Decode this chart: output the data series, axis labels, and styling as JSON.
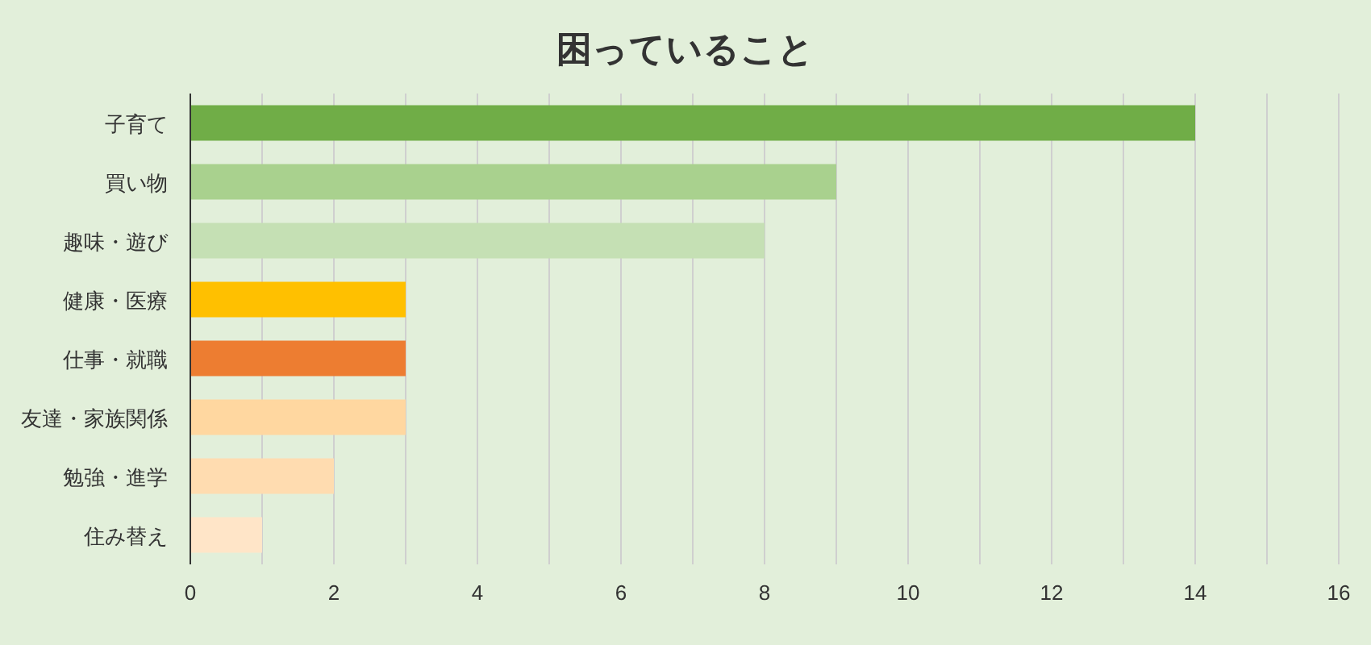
{
  "chart_data": {
    "type": "bar",
    "orientation": "horizontal",
    "title": "困っていること",
    "categories": [
      "子育て",
      "買い物",
      "趣味・遊び",
      "健康・医療",
      "仕事・就職",
      "友達・家族関係",
      "勉強・進学",
      "住み替え"
    ],
    "values": [
      14,
      9,
      8,
      3,
      3,
      3,
      2,
      1
    ],
    "colors": [
      "#70ad47",
      "#a9d18e",
      "#c5e0b4",
      "#ffc000",
      "#ed7d31",
      "#ffd7a0",
      "#ffdcb0",
      "#ffe5c8"
    ],
    "xlim": [
      0,
      16
    ],
    "xticks": [
      0,
      {
        "value": 1,
        "label": null
      },
      2,
      {
        "value": 3,
        "label": null
      },
      4,
      {
        "value": 5,
        "label": null
      },
      6,
      {
        "value": 7,
        "label": null
      },
      8,
      {
        "value": 9,
        "label": null
      },
      10,
      {
        "value": 11,
        "label": null
      },
      12,
      {
        "value": 13,
        "label": null
      },
      14,
      {
        "value": 15,
        "label": null
      },
      16
    ],
    "grid": "x"
  }
}
